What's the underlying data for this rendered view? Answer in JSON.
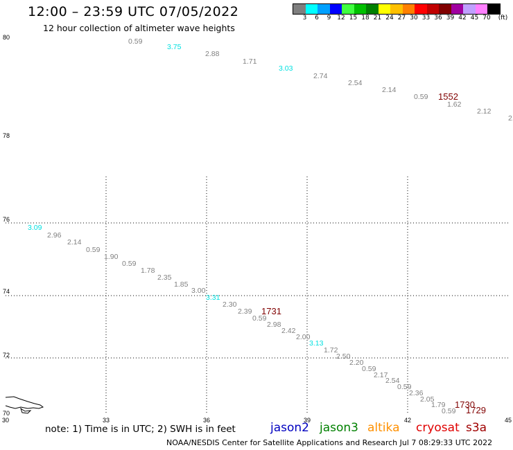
{
  "header": {
    "title": "12:00 – 23:59 UTC 07/05/2022",
    "subtitle": "12 hour collection of altimeter wave heights"
  },
  "legend": {
    "unit": "(ft)",
    "bins": [
      {
        "label": "3",
        "color": "#7f7f7f"
      },
      {
        "label": "6",
        "color": "#00ffff"
      },
      {
        "label": "9",
        "color": "#00a0ff"
      },
      {
        "label": "12",
        "color": "#0000ff"
      },
      {
        "label": "15",
        "color": "#40ff40"
      },
      {
        "label": "18",
        "color": "#00c000"
      },
      {
        "label": "21",
        "color": "#008000"
      },
      {
        "label": "24",
        "color": "#ffff00"
      },
      {
        "label": "27",
        "color": "#ffc000"
      },
      {
        "label": "30",
        "color": "#ff8000"
      },
      {
        "label": "33",
        "color": "#ff0000"
      },
      {
        "label": "36",
        "color": "#c00000"
      },
      {
        "label": "39",
        "color": "#800000"
      },
      {
        "label": "42",
        "color": "#a000a0"
      },
      {
        "label": "45",
        "color": "#c0a0ff"
      },
      {
        "label": "70",
        "color": "#ff80ff"
      },
      {
        "label": "",
        "color": "#000000"
      }
    ]
  },
  "map": {
    "lat_labels": [
      "80",
      "78",
      "76",
      "74",
      "72",
      "70"
    ],
    "lon_labels": [
      "30",
      "33",
      "36",
      "39",
      "42",
      "45"
    ],
    "colors": {
      "gray": "#808080",
      "cyan": "#00e0e0",
      "pass": "#800000",
      "grid": "#000000"
    }
  },
  "swh_points": [
    {
      "t": "0.59",
      "c": "gray"
    },
    {
      "t": "3.75",
      "c": "cyan"
    },
    {
      "t": "2.88",
      "c": "gray"
    },
    {
      "t": "1.71",
      "c": "gray"
    },
    {
      "t": "3.03",
      "c": "cyan"
    },
    {
      "t": "2.74",
      "c": "gray"
    },
    {
      "t": "2.54",
      "c": "gray"
    },
    {
      "t": "2.14",
      "c": "gray"
    },
    {
      "t": "0.59",
      "c": "gray"
    },
    {
      "t": "1.62",
      "c": "gray"
    },
    {
      "t": "2.12",
      "c": "gray"
    },
    {
      "t": "2.",
      "c": "gray"
    },
    {
      "t": "3.09",
      "c": "cyan"
    },
    {
      "t": "2.96",
      "c": "gray"
    },
    {
      "t": "2.14",
      "c": "gray"
    },
    {
      "t": "0.59",
      "c": "gray"
    },
    {
      "t": "1.90",
      "c": "gray"
    },
    {
      "t": "0.59",
      "c": "gray"
    },
    {
      "t": "1.78",
      "c": "gray"
    },
    {
      "t": "2.35",
      "c": "gray"
    },
    {
      "t": "1.85",
      "c": "gray"
    },
    {
      "t": "3.00",
      "c": "gray"
    },
    {
      "t": "3.31",
      "c": "cyan"
    },
    {
      "t": "2.30",
      "c": "gray"
    },
    {
      "t": "2.39",
      "c": "gray"
    },
    {
      "t": "0.59",
      "c": "gray"
    },
    {
      "t": "2.98",
      "c": "gray"
    },
    {
      "t": "2.42",
      "c": "gray"
    },
    {
      "t": "2.00",
      "c": "gray"
    },
    {
      "t": "3.13",
      "c": "cyan"
    },
    {
      "t": "1.72",
      "c": "gray"
    },
    {
      "t": "2.50",
      "c": "gray"
    },
    {
      "t": "2.20",
      "c": "gray"
    },
    {
      "t": "0.59",
      "c": "gray"
    },
    {
      "t": "2.17",
      "c": "gray"
    },
    {
      "t": "2.54",
      "c": "gray"
    },
    {
      "t": "0.59",
      "c": "gray"
    },
    {
      "t": "2.36",
      "c": "gray"
    },
    {
      "t": "2.05",
      "c": "gray"
    },
    {
      "t": "1.79",
      "c": "gray"
    },
    {
      "t": "0.59",
      "c": "gray"
    }
  ],
  "pass_times": [
    "1552",
    "1731",
    "1730",
    "1729"
  ],
  "footer": {
    "note": "note:  1) Time is in UTC; 2) SWH is in feet",
    "satellites": [
      {
        "name": "jason2",
        "color": "#0000c0"
      },
      {
        "name": "jason3",
        "color": "#008000"
      },
      {
        "name": "altika",
        "color": "#ff9000"
      },
      {
        "name": "cryosat",
        "color": "#e00000"
      },
      {
        "name": "s3a",
        "color": "#a00000"
      }
    ],
    "credit": "NOAA/NESDIS Center for Satellite Applications and Research    Jul  7 08:29:33 UTC 2022"
  }
}
